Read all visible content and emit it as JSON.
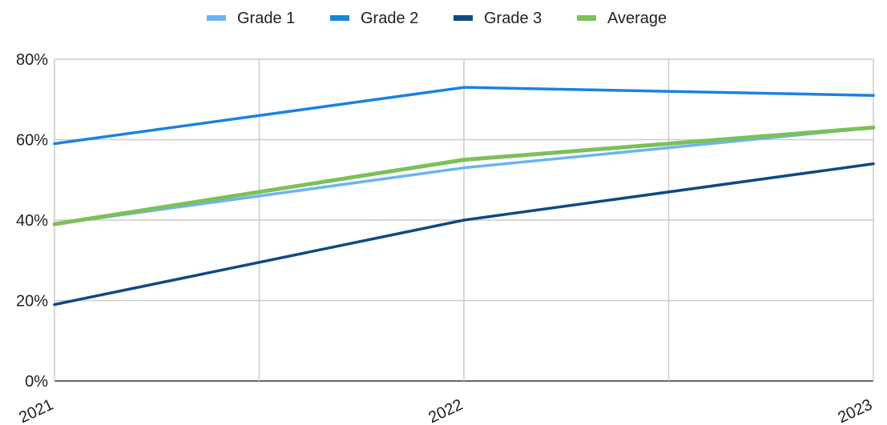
{
  "chart_data": {
    "type": "line",
    "x": [
      "2021",
      "2022",
      "2023"
    ],
    "series": [
      {
        "name": "Grade 1",
        "values": [
          39,
          53,
          63
        ],
        "color": "#6cb4f2"
      },
      {
        "name": "Grade 2",
        "values": [
          59,
          73,
          71
        ],
        "color": "#1a82e2"
      },
      {
        "name": "Grade 3",
        "values": [
          19,
          40,
          54
        ],
        "color": "#0e4a82"
      },
      {
        "name": "Average",
        "values": [
          39,
          55,
          63
        ],
        "color": "#7cc05a"
      }
    ],
    "title": "",
    "xlabel": "",
    "ylabel": "",
    "ylim": [
      0,
      80
    ],
    "yticks": [
      0,
      20,
      40,
      60,
      80
    ],
    "ytick_format": "percent",
    "grid": true,
    "legend_position": "top-center"
  }
}
